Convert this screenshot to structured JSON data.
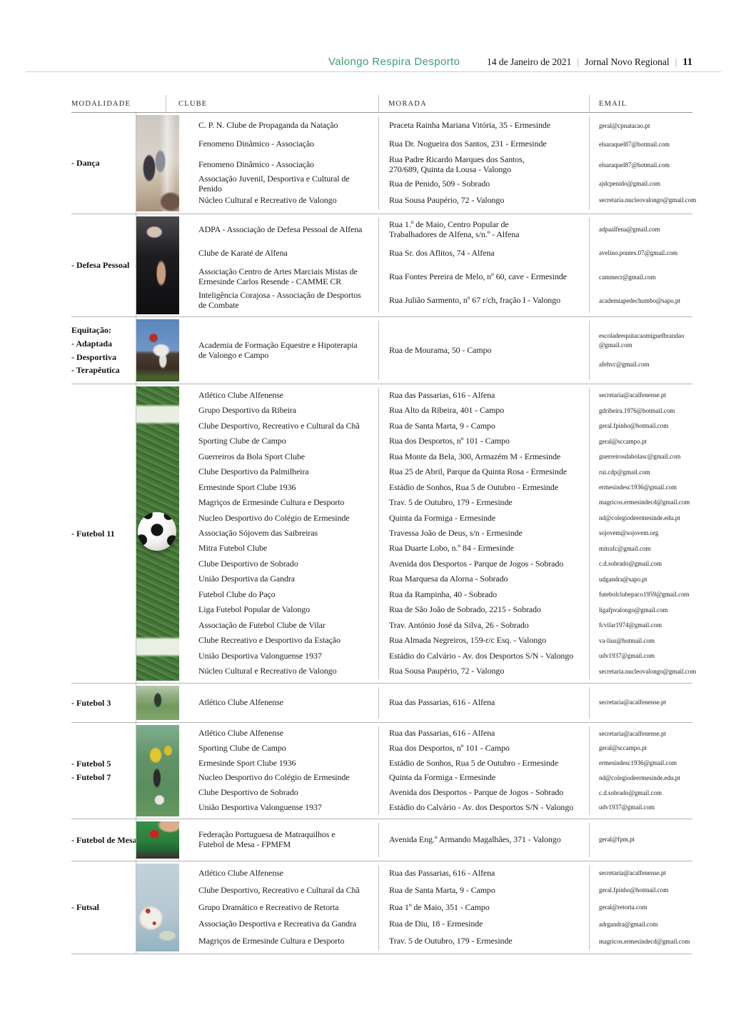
{
  "header": {
    "section_title": "Valongo Respira Desporto",
    "date": "14 de Janeiro de 2021",
    "separator": "|",
    "journal_name": "Jornal Novo Regional",
    "page_number": "11",
    "accent_color": "#3aa06e"
  },
  "table": {
    "columns": [
      "MODALIDADE",
      "CLUBE",
      "MORADA",
      "EMAIL"
    ],
    "sections": [
      {
        "modality_lines": [
          "- Dança"
        ],
        "photo": "dance-photo",
        "entries": [
          {
            "clube": "C. P. N. Clube de Propaganda da Natação",
            "morada": "Praceta Rainha Mariana Vitória, 35 - Ermesinde",
            "email": "geral@cpnatacao.pt"
          },
          {
            "clube": "Fenomeno Dinâmico - Associação",
            "morada": "Rua Dr. Nogueira dos Santos, 231 - Ermesinde",
            "email": "elsaraquel87@hotmail.com"
          },
          {
            "clube": "Fenomeno Dinâmico - Associação",
            "morada": "Rua Padre Ricardo Marques dos Santos,\n270/689, Quinta da Lousa - Valongo",
            "email": "elsaraquel87@hotmail.com"
          },
          {
            "clube": "Associação Juvenil, Desportiva e Cultural de Penido",
            "morada": "Rua de Penido, 509 - Sobrado",
            "email": "ajdcpenido@gmail.com"
          },
          {
            "clube": "Núcleo Cultural e Recreativo de Valongo",
            "morada": "Rua Sousa Paupério, 72 - Valongo",
            "email": "secretaria.nucleovalongo@gmail.com"
          }
        ]
      },
      {
        "modality_lines": [
          "- Defesa Pessoal"
        ],
        "photo": "self-defense-photo",
        "entries": [
          {
            "clube": "ADPA - Associação de Defesa Pessoal de Alfena",
            "morada": "Rua 1.º de Maio, Centro Popular de\nTrabalhadores de Alfena, s/n.º - Alfena",
            "email": "adpaalfena@gmail.com"
          },
          {
            "clube": "Clube de Karaté de Alfena",
            "morada": "Rua Sr. dos Aflitos, 74 - Alfena",
            "email": "avelino.pontes.07@gmail.com"
          },
          {
            "clube": "Associação Centro de Artes Marciais Mistas de\nErmesinde Carlos Resende - CAMME CR",
            "morada": "Rua Fontes Pereira de Melo, nº 60, cave - Ermesinde",
            "email": "cammecr@gmail.com"
          },
          {
            "clube": "Inteligência Corajosa - Associação de Desportos\nde Combate",
            "morada": "Rua Julião Sarmento, nº 67 r/ch, fração I - Valongo",
            "email": "academiapedechumbo@sapo.pt"
          }
        ]
      },
      {
        "modality_lines": [
          "Equitação:",
          "- Adaptada",
          "- Desportiva",
          "- Terapêutica"
        ],
        "photo": "equestrian-photo",
        "entries": [
          {
            "clube": "Academia de Formação Equestre e Hipoterapia\nde Valongo e Campo",
            "morada": "Rua de Mourama, 50 - Campo",
            "email": "escoladeequitacaomiguelbrandao\n@gmail.com\n\nafehvc@gmail.com"
          }
        ]
      },
      {
        "modality_lines": [
          "- Futebol 11"
        ],
        "photo": "football-photo",
        "entries": [
          {
            "clube": "Atlético Clube Alfenense",
            "morada": "Rua das Passarias, 616 - Alfena",
            "email": "secretaria@acalfenense.pt"
          },
          {
            "clube": "Grupo Desportivo da Ribeira",
            "morada": "Rua Alto da Ribeira, 401 - Campo",
            "email": "gdribeira.1976@hotmail.com"
          },
          {
            "clube": "Clube Desportivo, Recreativo e Cultural da Chã",
            "morada": "Rua de Santa Marta, 9 - Campo",
            "email": "geral.fpinho@hotmail.com"
          },
          {
            "clube": "Sporting Clube de Campo",
            "morada": "Rua dos Desportos, nº 101 - Campo",
            "email": "geral@sccampo.pt"
          },
          {
            "clube": "Guerreiros da Bola Sport Clube",
            "morada": "Rua Monte da Bela, 300, Armazém M - Ermesinde",
            "email": "guerreirosdabolasc@gmail.com"
          },
          {
            "clube": "Clube Desportivo da Palmilheira",
            "morada": "Rua 25 de Abril, Parque da Quinta Rosa - Ermesinde",
            "email": "rui.cdp@gmail.com"
          },
          {
            "clube": "Ermesinde Sport Clube 1936",
            "morada": "Estádio de Sonhos, Rua 5 de Outubro - Ermesinde",
            "email": "ermesindesc1936@gmail.com"
          },
          {
            "clube": "Magriços de Ermesinde Cultura e Desporto",
            "morada": "Trav. 5 de Outubro, 179 - Ermesinde",
            "email": "magricos.ermesindecd@gmail.com"
          },
          {
            "clube": "Nucleo Desportivo do Colégio de Ermesinde",
            "morada": "Quinta da Formiga - Ermesinde",
            "email": "nd@colegiodeermesinde.edu.pt"
          },
          {
            "clube": "Associação Sójovem das Saibreiras",
            "morada": "Travessa João de Deus, s/n - Ermesinde",
            "email": "sojovem@sojovem.org"
          },
          {
            "clube": "Mitra Futebol Clube",
            "morada": "Rua Duarte Lobo, n.º 84 - Ermesinde",
            "email": "mitrafc@gmail.com"
          },
          {
            "clube": "Clube Desportivo de Sobrado",
            "morada": "Avenida dos Desportos - Parque de Jogos - Sobrado",
            "email": "c.d.sobrado@gmail.com"
          },
          {
            "clube": "União Desportiva da Gandra",
            "morada": "Rua Marquesa da Alorna - Sobrado",
            "email": "udgandra@sapo.pt"
          },
          {
            "clube": "Futebol Clube do Paço",
            "morada": "Rua da Rampinha, 40 - Sobrado",
            "email": "futebolclubepaco1959@gmail.com"
          },
          {
            "clube": "Liga Futebol Popular de Valongo",
            "morada": "Rua de São João de Sobrado, 2215 - Sobrado",
            "email": "ligafpvalongo@gmail.com"
          },
          {
            "clube": "Associação de Futebol Clube de Vilar",
            "morada": "Trav. António José da Silva, 26 - Sobrado",
            "email": "fcvilar1974@gmail.com"
          },
          {
            "clube": "Clube Recreativo e Desportivo da Estação",
            "morada": "Rua Almada Negreiros, 159-r/c Esq. - Valongo",
            "email": "va-lius@hotmail.com"
          },
          {
            "clube": "União Desportiva Valonguense 1937",
            "morada": "Estádio do Calvário - Av. dos Desportos S/N - Valongo",
            "email": "udv1937@gmail.com"
          },
          {
            "clube": "Núcleo Cultural e Recreativo de Valongo",
            "morada": "Rua Sousa Paupério, 72 - Valongo",
            "email": "secretaria.nucleovalongo@gmail.com"
          }
        ]
      },
      {
        "modality_lines": [
          "- Futebol 3"
        ],
        "photo": "football3-photo",
        "entries": [
          {
            "clube": "Atlético Clube Alfenense",
            "morada": "Rua das Passarias, 616 - Alfena",
            "email": "secretaria@acalfenense.pt"
          }
        ]
      },
      {
        "modality_lines": [
          "- Futebol 5",
          "- Futebol 7"
        ],
        "photo": "football57-photo",
        "entries": [
          {
            "clube": "Atlético Clube Alfenense",
            "morada": "Rua das Passarias, 616 - Alfena",
            "email": "secretaria@acalfenense.pt"
          },
          {
            "clube": "Sporting Clube de Campo",
            "morada": "Rua dos Desportos, nº 101 - Campo",
            "email": "geral@sccampo.pt"
          },
          {
            "clube": "Ermesinde Sport Clube 1936",
            "morada": "Estádio de Sonhos, Rua 5 de Outubro - Ermesinde",
            "email": "ermesindesc1936@gmail.com"
          },
          {
            "clube": "Nucleo Desportivo do Colégio de Ermesinde",
            "morada": "Quinta da Formiga - Ermesinde",
            "email": "nd@colegiodeermesinde.edu.pt"
          },
          {
            "clube": "Clube Desportivo de Sobrado",
            "morada": "Avenida dos Desportos - Parque de Jogos - Sobrado",
            "email": "c.d.sobrado@gmail.com"
          },
          {
            "clube": "União Desportiva Valonguense 1937",
            "morada": "Estádio do Calvário - Av. dos Desportos S/N - Valongo",
            "email": "udv1937@gmail.com"
          }
        ]
      },
      {
        "modality_lines": [
          "- Futebol de Mesa"
        ],
        "photo": "table-football-photo",
        "entries": [
          {
            "clube": "Federação Portuguesa de Matraquilhos e\nFutebol de Mesa - FPMFM",
            "morada": "Avenida Eng.º Armando Magalhães, 371 - Valongo",
            "email": "geral@fpm.pt"
          }
        ]
      },
      {
        "modality_lines": [
          "- Futsal"
        ],
        "photo": "futsal-photo",
        "entries": [
          {
            "clube": "Atlético Clube Alfenense",
            "morada": "Rua das Passarias, 616 - Alfena",
            "email": "secretaria@acalfenense.pt"
          },
          {
            "clube": "Clube Desportivo, Recreativo e Cultural da Chã",
            "morada": "Rua de Santa Marta, 9 - Campo",
            "email": "geral.fpinho@hotmail.com"
          },
          {
            "clube": "Grupo Dramático e Recreativo de Retorta",
            "morada": "Rua 1º de Maio, 351 - Campo",
            "email": "geral@retorta.com"
          },
          {
            "clube": "Associação Desportiva e Recreativa da Gandra",
            "morada": "Rua de Diu, 18 - Ermesinde",
            "email": "adrgandra@gmail.com"
          },
          {
            "clube": "Magriços de Ermesinde Cultura e Desporto",
            "morada": "Trav. 5 de Outubro, 179 - Ermesinde",
            "email": "magricos.ermesindecd@gmail.com"
          }
        ]
      }
    ]
  }
}
